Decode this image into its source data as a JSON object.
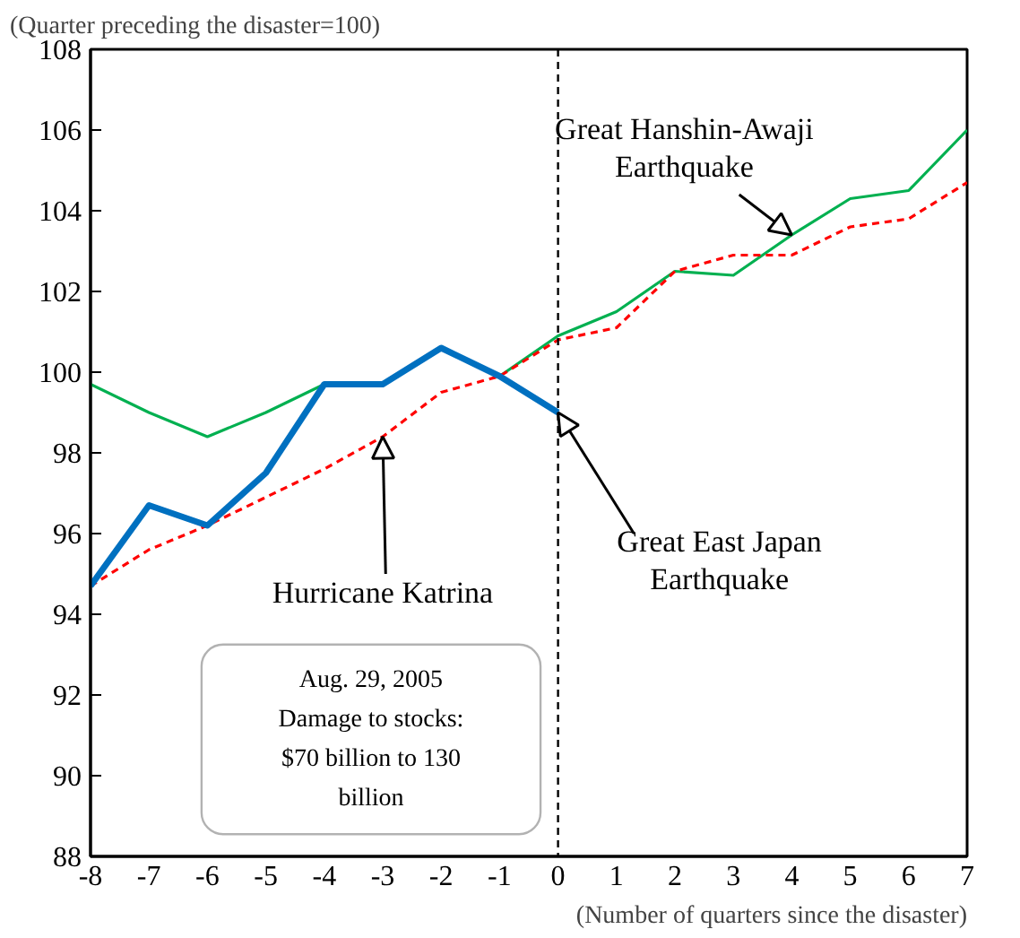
{
  "chart_data": {
    "type": "line",
    "ylabel": "(Quarter preceding the disaster=100)",
    "xlabel": "(Number of quarters since the disaster)",
    "x": [
      -8,
      -7,
      -6,
      -5,
      -4,
      -3,
      -2,
      -1,
      0,
      1,
      2,
      3,
      4,
      5,
      6,
      7
    ],
    "xlim": [
      -8,
      7
    ],
    "xticks": [
      -8,
      -7,
      -6,
      -5,
      -4,
      -3,
      -2,
      -1,
      0,
      1,
      2,
      3,
      4,
      5,
      6,
      7
    ],
    "ylim": [
      88,
      108
    ],
    "yticks": [
      88,
      90,
      92,
      94,
      96,
      98,
      100,
      102,
      104,
      106,
      108
    ],
    "grid": false,
    "series": [
      {
        "color": "#00b050",
        "values": [
          99.7,
          99.0,
          98.4,
          99.0,
          99.7,
          99.7,
          100.6,
          99.9,
          100.9,
          101.5,
          102.5,
          102.4,
          103.4,
          104.3,
          104.5,
          106.0
        ]
      },
      {
        "color": "#ff0000",
        "line_style": "dashed",
        "values": [
          94.7,
          95.6,
          96.2,
          96.9,
          97.6,
          98.4,
          99.5,
          99.9,
          100.8,
          101.1,
          102.5,
          102.9,
          102.9,
          103.6,
          103.8,
          104.7
        ]
      },
      {
        "color": "#0070c0",
        "values": [
          94.7,
          96.7,
          96.2,
          97.5,
          99.7,
          99.7,
          100.6,
          99.9,
          99.0,
          null,
          null,
          null,
          null,
          null,
          null,
          null
        ]
      }
    ],
    "ref_lines": [
      {
        "axis": "x",
        "value": 0,
        "color": "#000000",
        "line_style": "dashed"
      }
    ],
    "annotations": [
      {
        "text": "Great Hanshin-Awaji\nEarthquake",
        "x": 4,
        "y": 103.4
      },
      {
        "text": "Hurricane Katrina",
        "x": -3,
        "y": 98.4
      },
      {
        "text": "Great East Japan\nEarthquake",
        "x": 0,
        "y": 99.0
      },
      "Aug. 29, 2005\nDamage to stocks:\n$70 billion to 130\nbillion"
    ]
  }
}
